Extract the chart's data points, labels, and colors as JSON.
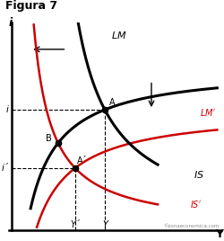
{
  "title": "Figura 7",
  "bg_color": "#ffffff",
  "black": "#000000",
  "red": "#cc0000",
  "gray": "#888888",
  "point_A": [
    5.0,
    5.8
  ],
  "point_B": [
    2.8,
    4.2
  ],
  "point_Ap": [
    3.6,
    3.0
  ],
  "y_i": 5.8,
  "y_ip": 3.0,
  "x_Yp": 3.6,
  "x_Y": 5.0,
  "lm_k": 18.0,
  "lm_x0": 2.0,
  "lmp_k": 18.0,
  "lmp_x0": 5.5,
  "is_k": 50.0,
  "is_y0": 1.5,
  "isp_k": 50.0,
  "isp_y0": 0.2,
  "xlim": [
    0.5,
    10.5
  ],
  "ylim": [
    0.0,
    10.0
  ],
  "watermark": "©zonaeconomica.com"
}
